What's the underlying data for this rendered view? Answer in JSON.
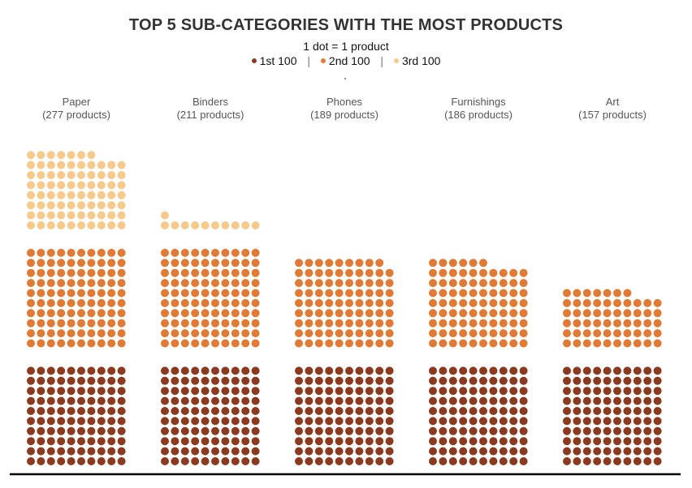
{
  "chart_data": {
    "type": "dot-matrix",
    "title": "TOP 5 SUB-CATEGORIES WITH THE MOST PRODUCTS",
    "subtitle": "1 dot = 1 product",
    "legend": [
      {
        "label": "1st 100",
        "color": "#8b3a1f"
      },
      {
        "label": "2nd 100",
        "color": "#e07a35"
      },
      {
        "label": "3rd 100",
        "color": "#f7c98a"
      }
    ],
    "categories": [
      "Paper",
      "Binders",
      "Phones",
      "Furnishings",
      "Art"
    ],
    "count_labels": [
      "(277 products)",
      "(211 products)",
      "(189 products)",
      "(186 products)",
      "(157 products)"
    ],
    "values": [
      277,
      211,
      189,
      186,
      157
    ],
    "dots_per_row": 10,
    "dots_per_group": 100
  }
}
